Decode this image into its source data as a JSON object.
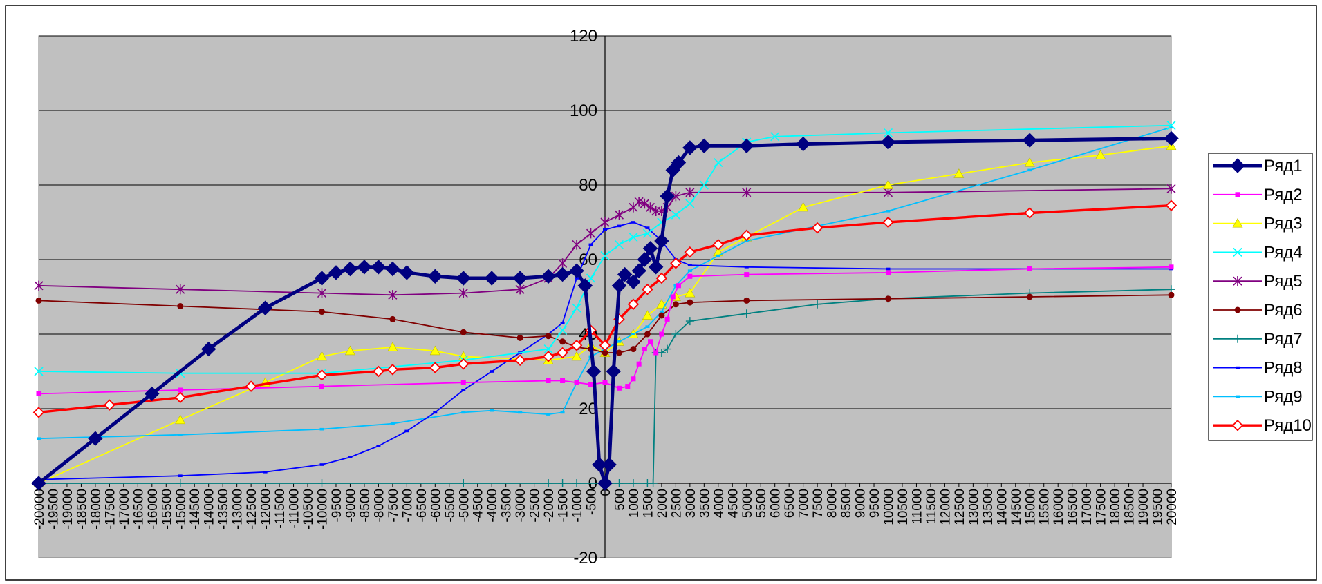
{
  "chart_data": {
    "type": "line",
    "title": "",
    "xlabel": "",
    "ylabel": "",
    "xlim": [
      -20000,
      20000
    ],
    "ylim": [
      -20,
      120
    ],
    "y_ticks": [
      -20,
      0,
      20,
      40,
      60,
      80,
      100,
      120
    ],
    "x_tick_step": 500,
    "grid": "horizontal",
    "legend_position": "right",
    "plot_background": "#c0c0c0",
    "series": [
      {
        "name": "Ряд1",
        "color": "#000080",
        "marker": "diamond",
        "points": [
          [
            -20000,
            0
          ],
          [
            -18000,
            12
          ],
          [
            -16000,
            24
          ],
          [
            -14000,
            36
          ],
          [
            -12000,
            47
          ],
          [
            -10000,
            55
          ],
          [
            -9500,
            56.5
          ],
          [
            -9000,
            57.5
          ],
          [
            -8500,
            58
          ],
          [
            -8000,
            58
          ],
          [
            -7500,
            57.5
          ],
          [
            -7000,
            56.5
          ],
          [
            -6000,
            55.5
          ],
          [
            -5000,
            55
          ],
          [
            -4000,
            55
          ],
          [
            -3000,
            55
          ],
          [
            -2000,
            55.5
          ],
          [
            -1500,
            56
          ],
          [
            -1000,
            57
          ],
          [
            -700,
            53
          ],
          [
            -400,
            30
          ],
          [
            -200,
            5
          ],
          [
            0,
            0
          ],
          [
            150,
            5
          ],
          [
            300,
            30
          ],
          [
            500,
            53
          ],
          [
            700,
            56
          ],
          [
            1000,
            54
          ],
          [
            1200,
            57
          ],
          [
            1400,
            60
          ],
          [
            1600,
            63
          ],
          [
            1800,
            58
          ],
          [
            2000,
            65
          ],
          [
            2200,
            77
          ],
          [
            2400,
            84
          ],
          [
            2600,
            86
          ],
          [
            3000,
            90
          ],
          [
            3500,
            90.5
          ],
          [
            5000,
            90.5
          ],
          [
            7000,
            91
          ],
          [
            10000,
            91.5
          ],
          [
            15000,
            92
          ],
          [
            20000,
            92.5
          ]
        ]
      },
      {
        "name": "Ряд2",
        "color": "#ff00ff",
        "marker": "square",
        "points": [
          [
            -20000,
            24
          ],
          [
            -15000,
            25
          ],
          [
            -10000,
            26
          ],
          [
            -5000,
            27
          ],
          [
            -2000,
            27.5
          ],
          [
            -1500,
            27.5
          ],
          [
            -1000,
            27
          ],
          [
            -500,
            26.5
          ],
          [
            0,
            27
          ],
          [
            500,
            25.5
          ],
          [
            800,
            26
          ],
          [
            1000,
            28
          ],
          [
            1200,
            32
          ],
          [
            1400,
            36
          ],
          [
            1600,
            38
          ],
          [
            1800,
            35
          ],
          [
            2000,
            40
          ],
          [
            2200,
            44
          ],
          [
            2400,
            50
          ],
          [
            2600,
            53
          ],
          [
            3000,
            55.5
          ],
          [
            5000,
            56
          ],
          [
            10000,
            56.5
          ],
          [
            15000,
            57.5
          ],
          [
            20000,
            58
          ]
        ]
      },
      {
        "name": "Ряд3",
        "color": "#ffff00",
        "marker": "triangle",
        "points": [
          [
            -20000,
            0
          ],
          [
            -15000,
            17
          ],
          [
            -12000,
            27
          ],
          [
            -10000,
            34
          ],
          [
            -9000,
            35.5
          ],
          [
            -7500,
            36.5
          ],
          [
            -6000,
            35.5
          ],
          [
            -5000,
            34
          ],
          [
            -2000,
            33
          ],
          [
            -1000,
            34
          ],
          [
            -500,
            37
          ],
          [
            0,
            35
          ],
          [
            500,
            38
          ],
          [
            1000,
            40
          ],
          [
            1500,
            45
          ],
          [
            2000,
            48
          ],
          [
            2500,
            50
          ],
          [
            3000,
            51
          ],
          [
            4000,
            62
          ],
          [
            5000,
            66
          ],
          [
            7000,
            74
          ],
          [
            10000,
            80
          ],
          [
            12500,
            83
          ],
          [
            15000,
            86
          ],
          [
            17500,
            88
          ],
          [
            20000,
            90.5
          ]
        ]
      },
      {
        "name": "Ряд4",
        "color": "#00ffff",
        "marker": "x",
        "points": [
          [
            -20000,
            30
          ],
          [
            -15000,
            29.5
          ],
          [
            -10000,
            29.5
          ],
          [
            -5000,
            33
          ],
          [
            -2000,
            36
          ],
          [
            -1500,
            41
          ],
          [
            -1000,
            47
          ],
          [
            -500,
            55
          ],
          [
            0,
            61
          ],
          [
            500,
            64
          ],
          [
            1000,
            66
          ],
          [
            1500,
            67
          ],
          [
            2000,
            70
          ],
          [
            2500,
            72
          ],
          [
            3000,
            75
          ],
          [
            3500,
            80
          ],
          [
            4000,
            86
          ],
          [
            5000,
            91.5
          ],
          [
            6000,
            93
          ],
          [
            10000,
            94
          ],
          [
            20000,
            96
          ]
        ]
      },
      {
        "name": "Ряд5",
        "color": "#800080",
        "marker": "star",
        "points": [
          [
            -20000,
            53
          ],
          [
            -15000,
            52
          ],
          [
            -10000,
            51
          ],
          [
            -7500,
            50.5
          ],
          [
            -5000,
            51
          ],
          [
            -3000,
            52
          ],
          [
            -2000,
            55
          ],
          [
            -1500,
            59
          ],
          [
            -1000,
            64
          ],
          [
            -500,
            67
          ],
          [
            0,
            70
          ],
          [
            500,
            72
          ],
          [
            1000,
            74
          ],
          [
            1200,
            75.5
          ],
          [
            1400,
            75
          ],
          [
            1600,
            74
          ],
          [
            1800,
            73
          ],
          [
            2000,
            73
          ],
          [
            2200,
            74
          ],
          [
            2500,
            77
          ],
          [
            3000,
            78
          ],
          [
            5000,
            78
          ],
          [
            10000,
            78
          ],
          [
            20000,
            79
          ]
        ]
      },
      {
        "name": "Ряд6",
        "color": "#800000",
        "marker": "circle",
        "points": [
          [
            -20000,
            49
          ],
          [
            -15000,
            47.5
          ],
          [
            -10000,
            46
          ],
          [
            -7500,
            44
          ],
          [
            -5000,
            40.5
          ],
          [
            -3000,
            39
          ],
          [
            -2000,
            39.5
          ],
          [
            -1500,
            38
          ],
          [
            -1000,
            36.5
          ],
          [
            -500,
            36
          ],
          [
            0,
            35
          ],
          [
            500,
            35
          ],
          [
            1000,
            36
          ],
          [
            1500,
            40
          ],
          [
            2000,
            45
          ],
          [
            2500,
            48
          ],
          [
            3000,
            48.5
          ],
          [
            5000,
            49
          ],
          [
            10000,
            49.5
          ],
          [
            15000,
            50
          ],
          [
            20000,
            50.5
          ]
        ]
      },
      {
        "name": "Ряд7",
        "color": "#008080",
        "marker": "plus",
        "points": [
          [
            -20000,
            0
          ],
          [
            -15000,
            0
          ],
          [
            -10000,
            0
          ],
          [
            -5000,
            0
          ],
          [
            -2000,
            0
          ],
          [
            -1500,
            0
          ],
          [
            -1000,
            0
          ],
          [
            0,
            0
          ],
          [
            500,
            0
          ],
          [
            1000,
            0
          ],
          [
            1500,
            0
          ],
          [
            1700,
            0
          ],
          [
            1800,
            35
          ],
          [
            2000,
            35
          ],
          [
            2200,
            36
          ],
          [
            2500,
            40
          ],
          [
            3000,
            43.5
          ],
          [
            5000,
            45.5
          ],
          [
            7500,
            48
          ],
          [
            10000,
            49.5
          ],
          [
            15000,
            51
          ],
          [
            20000,
            52
          ]
        ]
      },
      {
        "name": "Ряд8",
        "color": "#0000ff",
        "marker": "dash",
        "points": [
          [
            -20000,
            1
          ],
          [
            -15000,
            2
          ],
          [
            -12000,
            3
          ],
          [
            -10000,
            5
          ],
          [
            -9000,
            7
          ],
          [
            -8000,
            10
          ],
          [
            -7000,
            14
          ],
          [
            -6000,
            19
          ],
          [
            -5000,
            25
          ],
          [
            -4000,
            30
          ],
          [
            -3000,
            35
          ],
          [
            -2000,
            40
          ],
          [
            -1500,
            43
          ],
          [
            -1000,
            55
          ],
          [
            -500,
            64
          ],
          [
            0,
            68
          ],
          [
            500,
            69
          ],
          [
            1000,
            70
          ],
          [
            1500,
            68.5
          ],
          [
            2000,
            65
          ],
          [
            2500,
            60
          ],
          [
            3000,
            58.5
          ],
          [
            5000,
            58
          ],
          [
            10000,
            57.5
          ],
          [
            20000,
            57.5
          ]
        ]
      },
      {
        "name": "Ряд9",
        "color": "#00bfff",
        "marker": "dash",
        "points": [
          [
            -20000,
            12
          ],
          [
            -15000,
            13
          ],
          [
            -10000,
            14.5
          ],
          [
            -7500,
            16
          ],
          [
            -5000,
            19
          ],
          [
            -4000,
            19.5
          ],
          [
            -3000,
            19
          ],
          [
            -2000,
            18.5
          ],
          [
            -1500,
            19
          ],
          [
            -1000,
            27
          ],
          [
            -500,
            34
          ],
          [
            0,
            36
          ],
          [
            500,
            38
          ],
          [
            1000,
            40
          ],
          [
            1500,
            42
          ],
          [
            2000,
            46
          ],
          [
            2500,
            53
          ],
          [
            3000,
            57
          ],
          [
            4000,
            61
          ],
          [
            5000,
            65
          ],
          [
            7500,
            69
          ],
          [
            10000,
            73
          ],
          [
            15000,
            84
          ],
          [
            20000,
            95.5
          ]
        ]
      },
      {
        "name": "Ряд10",
        "color": "#ff0000",
        "marker": "open-diamond",
        "points": [
          [
            -20000,
            19
          ],
          [
            -17500,
            21
          ],
          [
            -15000,
            23
          ],
          [
            -12500,
            26
          ],
          [
            -10000,
            29
          ],
          [
            -8000,
            30
          ],
          [
            -7500,
            30.5
          ],
          [
            -6000,
            31
          ],
          [
            -5000,
            32
          ],
          [
            -3000,
            33
          ],
          [
            -2000,
            34
          ],
          [
            -1500,
            35
          ],
          [
            -1000,
            37
          ],
          [
            -500,
            41
          ],
          [
            0,
            37
          ],
          [
            500,
            44
          ],
          [
            1000,
            48
          ],
          [
            1500,
            52
          ],
          [
            2000,
            55
          ],
          [
            2500,
            59
          ],
          [
            3000,
            62
          ],
          [
            4000,
            64
          ],
          [
            5000,
            66.5
          ],
          [
            7500,
            68.5
          ],
          [
            10000,
            70
          ],
          [
            15000,
            72.5
          ],
          [
            20000,
            74.5
          ]
        ]
      }
    ]
  }
}
